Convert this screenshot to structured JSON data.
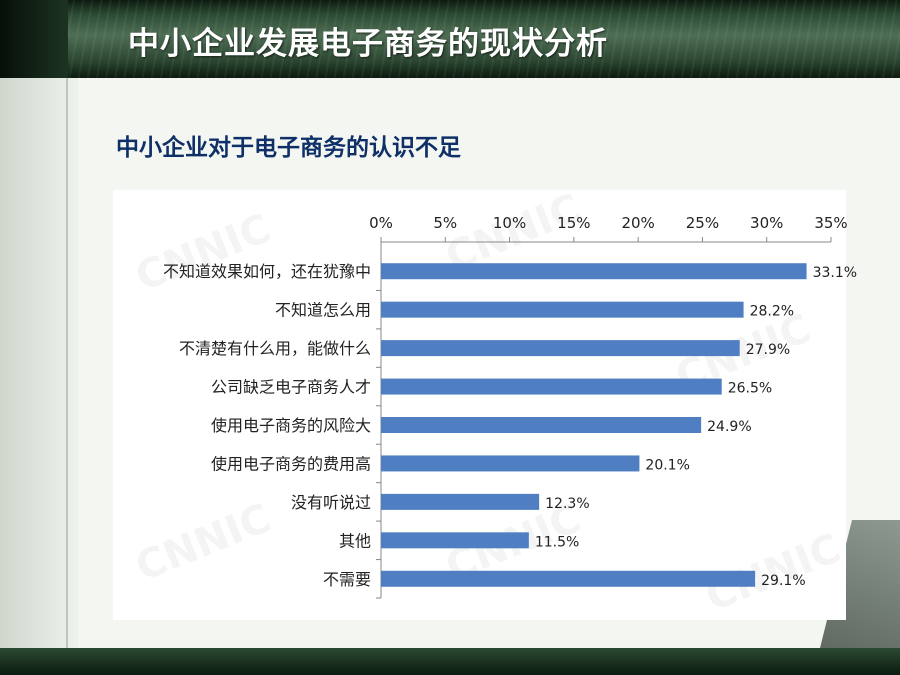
{
  "page": {
    "title": "中小企业发展电子商务的现状分析",
    "subtitle": "中小企业对于电子商务的认识不足"
  },
  "colors": {
    "bar": "#4f7fc2",
    "title_text": "#ffffff",
    "subtitle_text": "#0e2f67"
  },
  "watermark": "CNNIC",
  "chart_data": {
    "type": "bar",
    "orientation": "horizontal",
    "categories": [
      "不知道效果如何，还在犹豫中",
      "不知道怎么用",
      "不清楚有什么用，能做什么",
      "公司缺乏电子商务人才",
      "使用电子商务的风险大",
      "使用电子商务的费用高",
      "没有听说过",
      "其他",
      "不需要"
    ],
    "values": [
      33.1,
      28.2,
      27.9,
      26.5,
      24.9,
      20.1,
      12.3,
      11.5,
      29.1
    ],
    "value_labels": [
      "33.1%",
      "28.2%",
      "27.9%",
      "26.5%",
      "24.9%",
      "20.1%",
      "12.3%",
      "11.5%",
      "29.1%"
    ],
    "xlim": [
      0,
      35
    ],
    "x_ticks": [
      "0%",
      "5%",
      "10%",
      "15%",
      "20%",
      "25%",
      "30%",
      "35%"
    ],
    "axis_position": "top",
    "grid": false,
    "legend": "none"
  }
}
